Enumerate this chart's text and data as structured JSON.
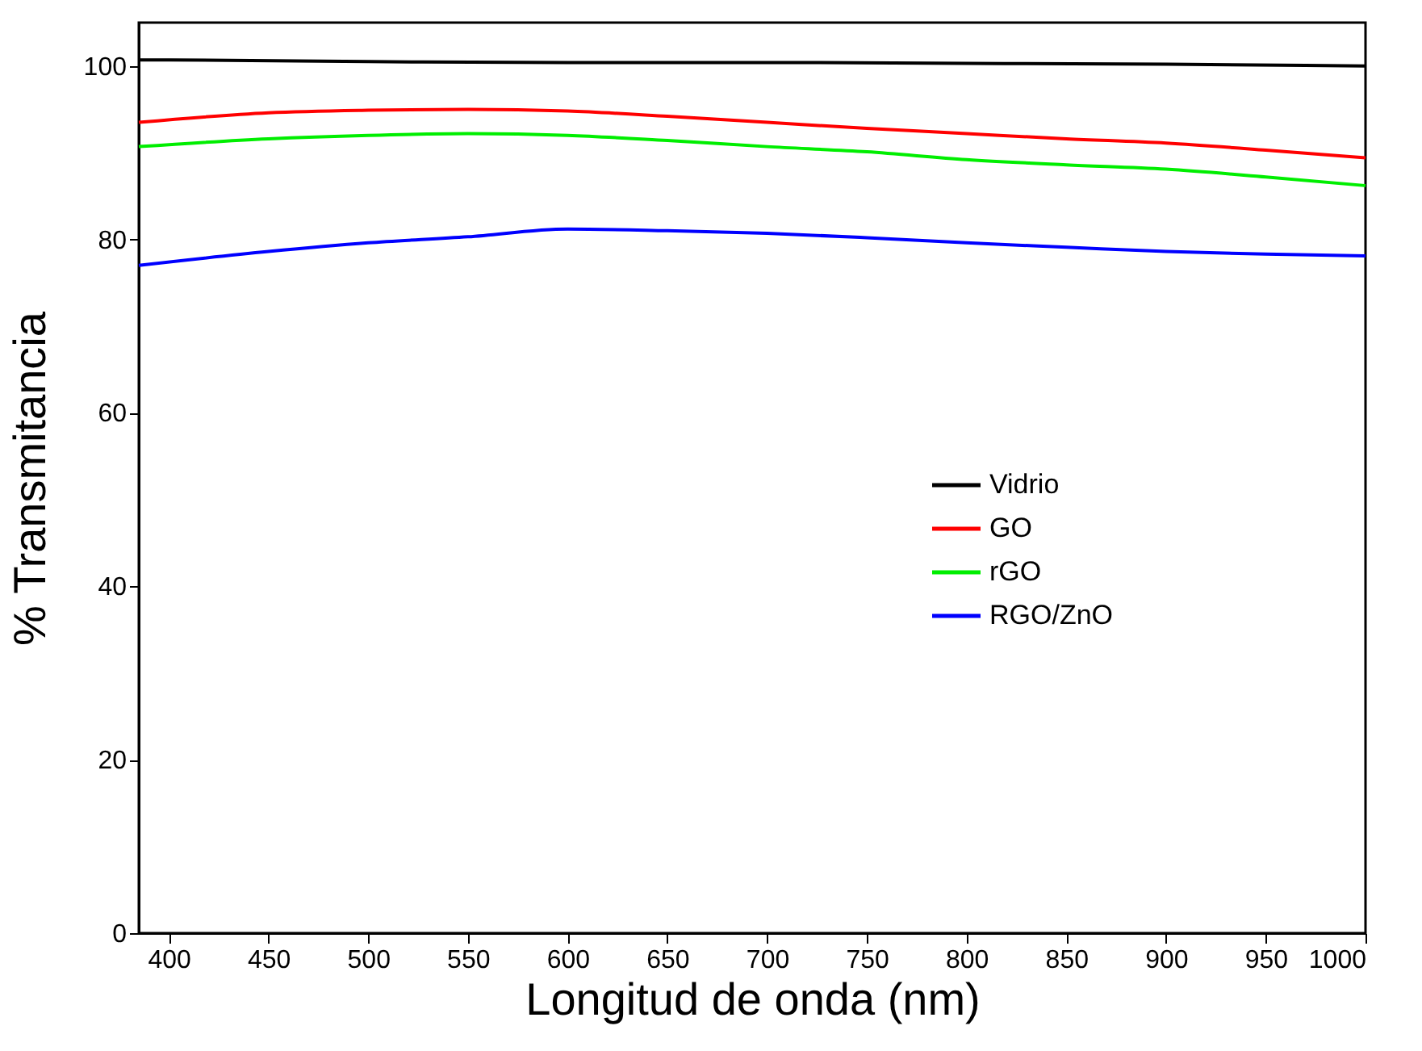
{
  "chart_data": {
    "type": "line",
    "xlabel": "Longitud de onda (nm)",
    "ylabel": "% Transmitancia",
    "xlim": [
      385,
      1000
    ],
    "ylim": [
      0,
      105
    ],
    "xticks": [
      400,
      450,
      500,
      550,
      600,
      650,
      700,
      750,
      800,
      850,
      900,
      950,
      1000
    ],
    "yticks": [
      0,
      20,
      40,
      60,
      80,
      100
    ],
    "grid": false,
    "legend": "right",
    "marker": "none",
    "line_style": "solid",
    "series": [
      {
        "name": "Vidrio",
        "color": "#000000",
        "x": [
          385,
          400,
          500,
          600,
          700,
          800,
          900,
          1000
        ],
        "values": [
          100.7,
          100.7,
          100.5,
          100.4,
          100.4,
          100.3,
          100.2,
          100.0
        ]
      },
      {
        "name": "GO",
        "color": "#ff0000",
        "x": [
          385,
          450,
          500,
          550,
          600,
          650,
          700,
          750,
          800,
          850,
          900,
          950,
          1000
        ],
        "values": [
          93.5,
          94.6,
          94.9,
          95.0,
          94.8,
          94.2,
          93.5,
          92.8,
          92.2,
          91.6,
          91.1,
          90.3,
          89.4
        ]
      },
      {
        "name": "rGO",
        "color": "#00ee00",
        "x": [
          385,
          450,
          500,
          550,
          600,
          650,
          700,
          750,
          800,
          850,
          900,
          950,
          1000
        ],
        "values": [
          90.7,
          91.6,
          92.0,
          92.2,
          92.0,
          91.4,
          90.7,
          90.1,
          89.2,
          88.6,
          88.1,
          87.2,
          86.2
        ]
      },
      {
        "name": "RGO/ZnO",
        "color": "#0000ff",
        "x": [
          385,
          450,
          500,
          550,
          600,
          650,
          700,
          750,
          800,
          850,
          900,
          950,
          1000
        ],
        "values": [
          77.0,
          78.6,
          79.6,
          80.3,
          81.2,
          81.0,
          80.7,
          80.2,
          79.6,
          79.1,
          78.6,
          78.3,
          78.1
        ]
      }
    ]
  }
}
